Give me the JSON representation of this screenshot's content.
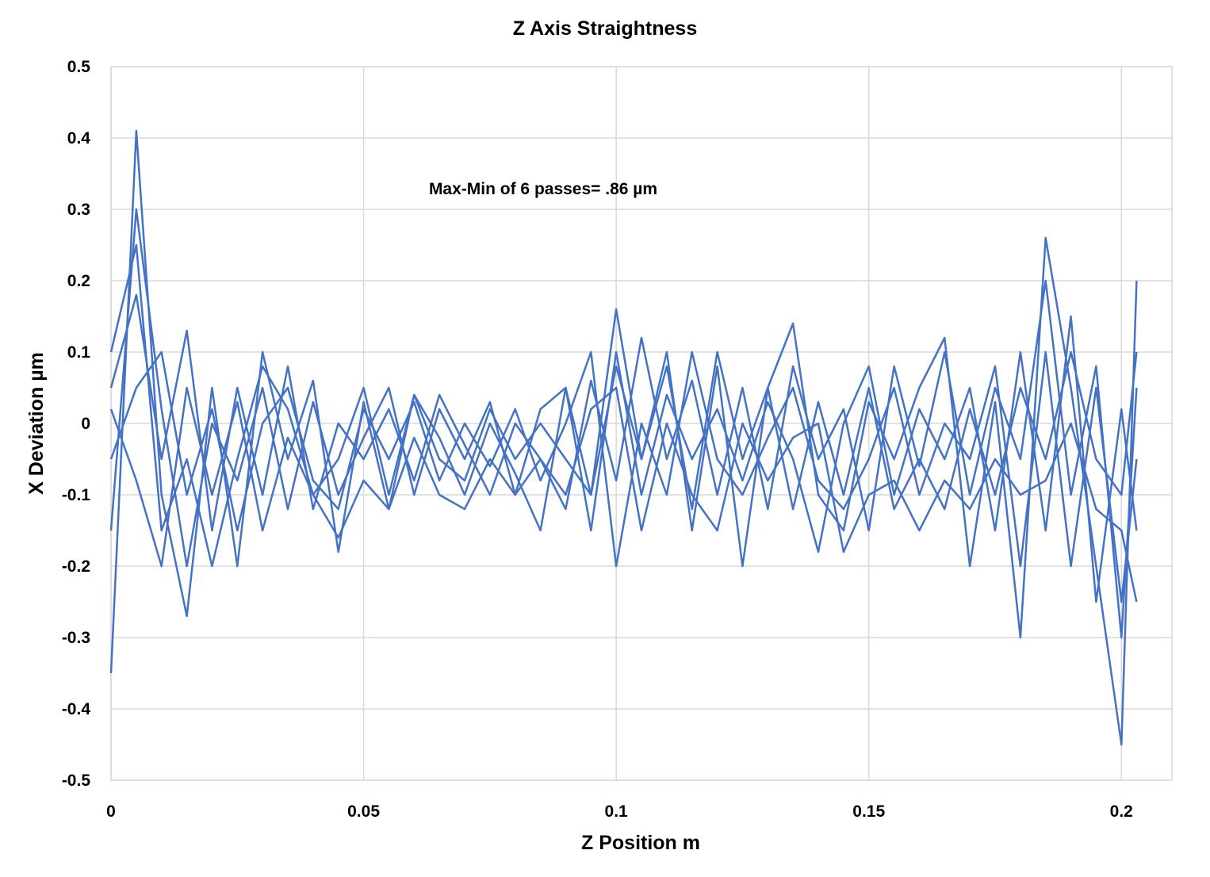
{
  "chart_data": {
    "type": "line",
    "title": "Z Axis Straightness",
    "xlabel": "Z Position m",
    "ylabel": "X Deviation µm",
    "annotation": "Max-Min of 6 passes= .86 µm",
    "xlim": [
      0,
      0.21
    ],
    "ylim": [
      -0.5,
      0.5
    ],
    "x_ticks": [
      0,
      0.05,
      0.1,
      0.15,
      0.2
    ],
    "x_tick_labels": [
      "0",
      "0.05",
      "0.1",
      "0.15",
      "0.2"
    ],
    "y_ticks": [
      0.5,
      0.4,
      0.3,
      0.2,
      0.1,
      0,
      -0.1,
      -0.2,
      -0.3,
      -0.4,
      -0.5
    ],
    "y_tick_labels": [
      "0.5",
      "0.4",
      "0.3",
      "0.2",
      "0.1",
      "0",
      "-0.1",
      "-0.2",
      "-0.3",
      "-0.4",
      "-0.5"
    ],
    "grid": true,
    "legend": "none",
    "line_color": "#4472C4",
    "series": [
      {
        "x": [
          0,
          0.005,
          0.01,
          0.015,
          0.02,
          0.025,
          0.03,
          0.035,
          0.04,
          0.045,
          0.05,
          0.055,
          0.06,
          0.065,
          0.07,
          0.075,
          0.08,
          0.085,
          0.09,
          0.095,
          0.1,
          0.105,
          0.11,
          0.115,
          0.12,
          0.125,
          0.13,
          0.135,
          0.14,
          0.145,
          0.15,
          0.155,
          0.16,
          0.165,
          0.17,
          0.175,
          0.18,
          0.185,
          0.19,
          0.195,
          0.2,
          0.203
        ],
        "values": [
          -0.35,
          0.41,
          -0.1,
          -0.27,
          0.05,
          -0.2,
          0.1,
          -0.05,
          0.06,
          -0.18,
          0.03,
          -0.12,
          0.04,
          -0.02,
          -0.1,
          0.0,
          -0.07,
          -0.15,
          0.05,
          -0.1,
          0.16,
          -0.05,
          0.1,
          -0.15,
          0.08,
          -0.2,
          0.05,
          0.14,
          -0.1,
          -0.15,
          0.03,
          -0.05,
          0.05,
          0.12,
          -0.2,
          0.03,
          -0.3,
          0.26,
          0.05,
          -0.2,
          -0.45,
          0.2
        ]
      },
      {
        "x": [
          0,
          0.005,
          0.01,
          0.015,
          0.02,
          0.025,
          0.03,
          0.035,
          0.04,
          0.045,
          0.05,
          0.055,
          0.06,
          0.065,
          0.07,
          0.075,
          0.08,
          0.085,
          0.09,
          0.095,
          0.1,
          0.105,
          0.11,
          0.115,
          0.12,
          0.125,
          0.13,
          0.135,
          0.14,
          0.145,
          0.15,
          0.155,
          0.16,
          0.165,
          0.17,
          0.175,
          0.18,
          0.185,
          0.19,
          0.195,
          0.2,
          0.203
        ],
        "values": [
          0.05,
          0.18,
          -0.05,
          0.13,
          -0.15,
          0.05,
          -0.1,
          0.08,
          -0.12,
          0.0,
          -0.05,
          0.02,
          -0.08,
          0.04,
          -0.03,
          -0.1,
          0.0,
          -0.05,
          -0.12,
          0.06,
          -0.08,
          0.12,
          -0.05,
          0.06,
          -0.1,
          0.05,
          -0.12,
          0.08,
          -0.05,
          0.02,
          -0.15,
          0.08,
          -0.06,
          0.1,
          -0.1,
          0.05,
          -0.05,
          0.2,
          -0.1,
          0.08,
          -0.3,
          0.05
        ]
      },
      {
        "x": [
          0,
          0.005,
          0.01,
          0.015,
          0.02,
          0.025,
          0.03,
          0.035,
          0.04,
          0.045,
          0.05,
          0.055,
          0.06,
          0.065,
          0.07,
          0.075,
          0.08,
          0.085,
          0.09,
          0.095,
          0.1,
          0.105,
          0.11,
          0.115,
          0.12,
          0.125,
          0.13,
          0.135,
          0.14,
          0.145,
          0.15,
          0.155,
          0.16,
          0.165,
          0.17,
          0.175,
          0.18,
          0.185,
          0.19,
          0.195,
          0.2,
          0.203
        ],
        "values": [
          -0.15,
          0.3,
          0.02,
          -0.2,
          0.0,
          -0.08,
          0.05,
          -0.12,
          0.03,
          -0.1,
          -0.02,
          0.05,
          -0.1,
          0.02,
          -0.05,
          0.03,
          -0.1,
          0.02,
          0.05,
          -0.15,
          0.1,
          -0.1,
          0.04,
          -0.05,
          0.02,
          -0.08,
          0.03,
          -0.05,
          -0.18,
          0.0,
          0.08,
          -0.1,
          0.02,
          -0.05,
          0.05,
          -0.15,
          0.1,
          -0.15,
          0.15,
          -0.25,
          0.02,
          -0.15
        ]
      },
      {
        "x": [
          0,
          0.005,
          0.01,
          0.015,
          0.02,
          0.025,
          0.03,
          0.035,
          0.04,
          0.045,
          0.05,
          0.055,
          0.06,
          0.065,
          0.07,
          0.075,
          0.08,
          0.085,
          0.09,
          0.095,
          0.1,
          0.105,
          0.11,
          0.115,
          0.12,
          0.125,
          0.13,
          0.135,
          0.14,
          0.145,
          0.15,
          0.155,
          0.16,
          0.165,
          0.17,
          0.175,
          0.18,
          0.185,
          0.19,
          0.195,
          0.2,
          0.203
        ],
        "values": [
          -0.05,
          0.05,
          0.1,
          -0.1,
          0.02,
          -0.15,
          0.0,
          0.05,
          -0.08,
          -0.12,
          0.02,
          -0.05,
          0.03,
          -0.08,
          0.0,
          -0.06,
          0.02,
          -0.08,
          0.0,
          0.1,
          -0.2,
          0.0,
          -0.1,
          0.1,
          -0.05,
          -0.1,
          -0.02,
          0.05,
          -0.08,
          -0.12,
          -0.05,
          0.05,
          -0.1,
          0.0,
          -0.05,
          0.08,
          -0.2,
          0.1,
          -0.2,
          0.05,
          -0.25,
          -0.05
        ]
      },
      {
        "x": [
          0,
          0.005,
          0.01,
          0.015,
          0.02,
          0.025,
          0.03,
          0.035,
          0.04,
          0.045,
          0.05,
          0.055,
          0.06,
          0.065,
          0.07,
          0.075,
          0.08,
          0.085,
          0.09,
          0.095,
          0.1,
          0.105,
          0.11,
          0.115,
          0.12,
          0.125,
          0.13,
          0.135,
          0.14,
          0.145,
          0.15,
          0.155,
          0.16,
          0.165,
          0.17,
          0.175,
          0.18,
          0.185,
          0.19,
          0.195,
          0.2,
          0.203
        ],
        "values": [
          0.02,
          -0.08,
          -0.2,
          0.05,
          -0.1,
          0.03,
          -0.15,
          -0.02,
          -0.1,
          -0.16,
          -0.08,
          -0.12,
          -0.02,
          -0.1,
          -0.12,
          -0.05,
          -0.1,
          -0.05,
          -0.1,
          0.02,
          0.05,
          -0.15,
          0.0,
          -0.1,
          -0.15,
          0.0,
          -0.08,
          -0.02,
          0.0,
          -0.18,
          -0.1,
          -0.08,
          -0.15,
          -0.08,
          -0.12,
          -0.05,
          -0.1,
          -0.08,
          0.0,
          -0.12,
          -0.15,
          -0.25
        ]
      },
      {
        "x": [
          0,
          0.005,
          0.01,
          0.015,
          0.02,
          0.025,
          0.03,
          0.035,
          0.04,
          0.045,
          0.05,
          0.055,
          0.06,
          0.065,
          0.07,
          0.075,
          0.08,
          0.085,
          0.09,
          0.095,
          0.1,
          0.105,
          0.11,
          0.115,
          0.12,
          0.125,
          0.13,
          0.135,
          0.14,
          0.145,
          0.15,
          0.155,
          0.16,
          0.165,
          0.17,
          0.175,
          0.18,
          0.185,
          0.19,
          0.195,
          0.2,
          0.203
        ],
        "values": [
          0.1,
          0.25,
          -0.15,
          -0.05,
          -0.2,
          -0.05,
          0.08,
          0.02,
          -0.1,
          -0.05,
          0.05,
          -0.1,
          0.04,
          -0.05,
          -0.08,
          0.02,
          -0.05,
          0.0,
          -0.05,
          -0.1,
          0.08,
          -0.05,
          0.08,
          -0.12,
          0.1,
          -0.05,
          0.05,
          -0.12,
          0.03,
          -0.1,
          0.05,
          -0.12,
          -0.05,
          -0.12,
          0.02,
          -0.1,
          0.05,
          -0.05,
          0.1,
          -0.05,
          -0.1,
          0.1
        ]
      }
    ]
  }
}
